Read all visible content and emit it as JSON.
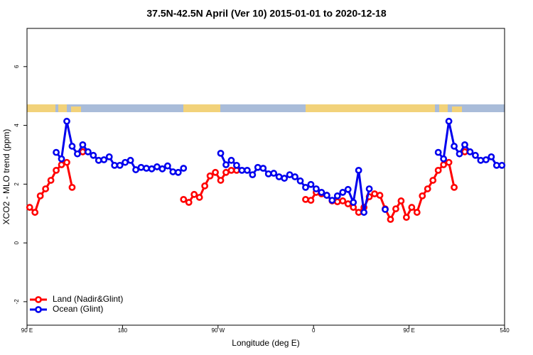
{
  "chart_data": {
    "type": "line",
    "title": "37.5N-42.5N April (Ver 10)   2015-01-01 to 2020-12-18",
    "x_label": "Longitude (deg E)",
    "y_label": "XCO2 - MLO trend (ppm)",
    "xlim": [
      90,
      540
    ],
    "xticks": [
      {
        "value": 90,
        "label": "90 E"
      },
      180,
      {
        "value": 270,
        "label": "90 W"
      },
      {
        "value": 360,
        "label": "0"
      },
      {
        "value": 450,
        "label": "90 E"
      },
      540
    ],
    "ylim": [
      -2.8,
      7.3
    ],
    "yticks": [
      -2,
      0,
      2,
      4,
      6
    ],
    "legend": "bottom-left",
    "x": [
      92.5,
      97.5,
      102.5,
      107.5,
      112.5,
      117.5,
      122.5,
      127.5,
      132.5,
      137.5,
      142.5,
      147.5,
      152.5,
      157.5,
      162.5,
      167.5,
      172.5,
      177.5,
      182.5,
      187.5,
      192.5,
      197.5,
      202.5,
      207.5,
      212.5,
      217.5,
      222.5,
      227.5,
      232.5,
      237.5,
      242.5,
      247.5,
      252.5,
      257.5,
      262.5,
      267.5,
      272.5,
      277.5,
      282.5,
      287.5,
      292.5,
      297.5,
      302.5,
      307.5,
      312.5,
      317.5,
      322.5,
      327.5,
      332.5,
      337.5,
      342.5,
      347.5,
      352.5,
      357.5,
      362.5,
      367.5,
      372.5,
      377.5,
      382.5,
      387.5,
      392.5,
      397.5,
      402.5,
      407.5,
      412.5,
      417.5,
      422.5,
      427.5,
      432.5,
      437.5,
      442.5,
      447.5,
      452.5,
      457.5,
      462.5,
      467.5,
      472.5,
      477.5,
      482.5,
      487.5,
      492.5,
      497.5,
      502.5,
      507.5,
      512.5,
      517.5,
      522.5,
      527.5,
      532.5,
      537.5
    ],
    "series": [
      {
        "name": "Land (Nadir&Glint)",
        "color": "#ff0000",
        "values": [
          1.21,
          1.04,
          1.6,
          1.84,
          2.13,
          2.47,
          2.66,
          2.74,
          1.89,
          null,
          3.1,
          null,
          null,
          null,
          null,
          null,
          null,
          null,
          null,
          null,
          null,
          null,
          null,
          null,
          null,
          null,
          null,
          null,
          null,
          1.48,
          1.38,
          1.65,
          1.55,
          1.94,
          2.28,
          2.4,
          2.13,
          2.4,
          2.47,
          2.47,
          null,
          null,
          null,
          null,
          null,
          null,
          null,
          null,
          null,
          null,
          null,
          null,
          1.48,
          1.45,
          1.72,
          1.67,
          1.62,
          1.43,
          1.4,
          1.43,
          1.33,
          1.21,
          1.04,
          1.21,
          1.57,
          1.67,
          1.62,
          1.16,
          0.8,
          1.16,
          1.43,
          0.87,
          1.21,
          1.04,
          1.6,
          1.84,
          2.13,
          2.47,
          2.66,
          2.74,
          1.89,
          null,
          3.1,
          null,
          null,
          null,
          null,
          null,
          null,
          null
        ]
      },
      {
        "name": "Ocean (Glint)",
        "color": "#0000ee",
        "values": [
          null,
          null,
          null,
          null,
          null,
          3.08,
          2.86,
          4.14,
          3.29,
          3.03,
          3.34,
          3.1,
          2.98,
          2.81,
          2.83,
          2.93,
          2.64,
          2.64,
          2.74,
          2.81,
          2.49,
          2.57,
          2.54,
          2.52,
          2.59,
          2.52,
          2.62,
          2.42,
          2.4,
          2.54,
          null,
          null,
          null,
          null,
          null,
          null,
          3.05,
          2.66,
          2.81,
          2.64,
          2.47,
          2.47,
          2.32,
          2.57,
          2.54,
          2.35,
          2.37,
          2.25,
          2.2,
          2.32,
          2.25,
          2.11,
          1.89,
          1.99,
          1.84,
          1.72,
          1.62,
          1.45,
          1.6,
          1.72,
          1.82,
          1.38,
          2.47,
          1.04,
          1.84,
          null,
          null,
          1.14,
          null,
          null,
          null,
          null,
          null,
          null,
          null,
          null,
          null,
          3.08,
          2.86,
          4.14,
          3.29,
          3.03,
          3.34,
          3.1,
          2.98,
          2.81,
          2.83,
          2.93,
          2.64,
          2.64
        ]
      }
    ]
  }
}
